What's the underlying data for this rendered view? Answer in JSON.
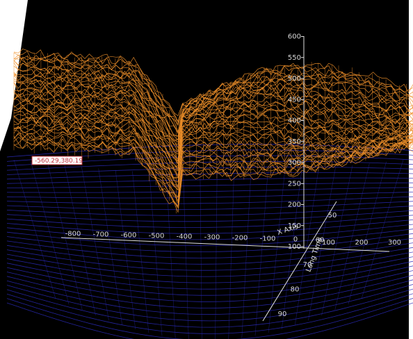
{
  "chart_data": {
    "type": "surface-3d",
    "title": "",
    "axes": {
      "x": {
        "label": "X Axis",
        "ticks": [
          -800,
          -700,
          -600,
          -500,
          -400,
          -300,
          -200,
          -100,
          0,
          100,
          200,
          300
        ]
      },
      "y": {
        "label": "",
        "ticks": [
          100,
          150,
          200,
          250,
          300,
          350,
          400,
          450,
          500,
          550,
          600
        ]
      },
      "z": {
        "label": "Long Time",
        "ticks": [
          50,
          60,
          70,
          80,
          90
        ]
      }
    },
    "grid": false,
    "colors": {
      "background": "#000000",
      "surface_wire": "#f0902a",
      "base_wire": "#2a2ab8",
      "axis_line": "#e0e0e0",
      "tooltip_border": "#c0303a",
      "tooltip_bg": "#ffffff"
    },
    "readout": "-560.29,380.19"
  }
}
